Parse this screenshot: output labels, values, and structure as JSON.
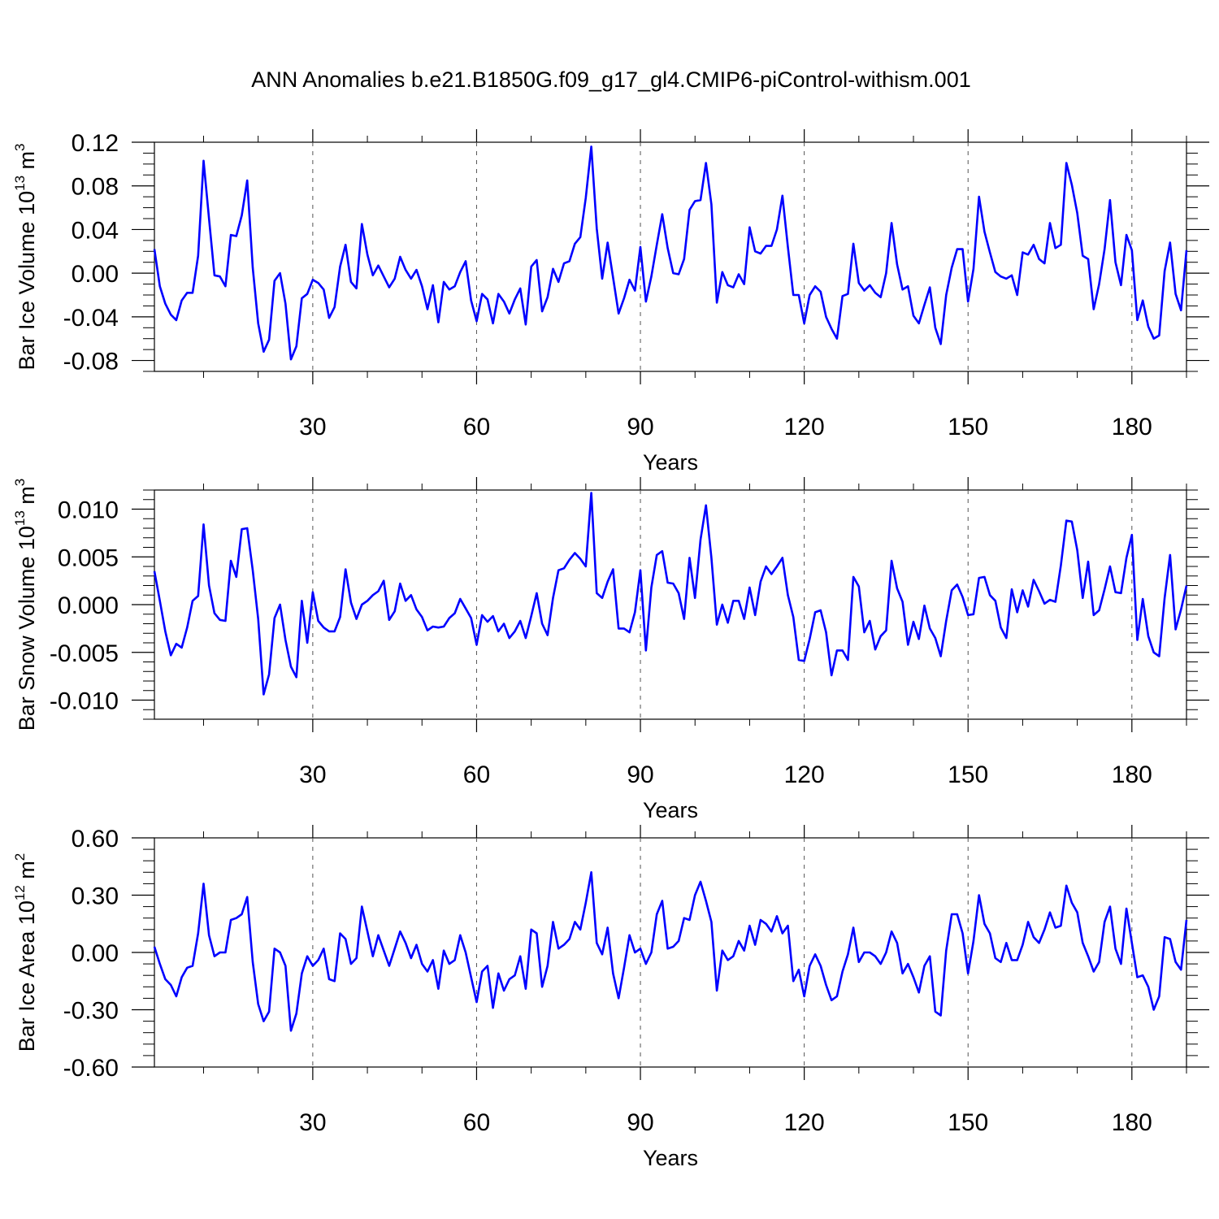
{
  "title": "ANN Anomalies b.e21.B1850G.f09_g17_gl4.CMIP6-piControl-withism.001",
  "colors": {
    "line": "#0000ff",
    "axis": "#000000",
    "grid": "#555555"
  },
  "chart_data": [
    {
      "type": "line",
      "title": "ANN Anomalies b.e21.B1850G.f09_g17_gl4.CMIP6-piControl-withism.001",
      "xlabel": "Years",
      "ylabel": {
        "text": "Bar Ice Volume 10",
        "exp": "13",
        "unit": " m",
        "unit_exp": "3"
      },
      "xlim": [
        1,
        190
      ],
      "ylim": [
        -0.09,
        0.12
      ],
      "xticks": [
        30,
        60,
        90,
        120,
        150,
        180
      ],
      "yticks": [
        -0.08,
        -0.04,
        0.0,
        0.04,
        0.08,
        0.12
      ],
      "ytick_labels": [
        "-0.08",
        "-0.04",
        "0.00",
        "0.04",
        "0.08",
        "0.12"
      ],
      "yminor": 0.01,
      "grid": "vertical dashed at major x ticks",
      "series": [
        {
          "name": "Bar Ice Volume",
          "values": [
            0.022,
            -0.012,
            -0.028,
            -0.038,
            -0.043,
            -0.025,
            -0.018,
            -0.018,
            0.016,
            0.103,
            0.05,
            -0.002,
            -0.003,
            -0.012,
            0.035,
            0.034,
            0.053,
            0.085,
            0.005,
            -0.046,
            -0.072,
            -0.061,
            -0.007,
            0.0,
            -0.028,
            -0.079,
            -0.067,
            -0.023,
            -0.019,
            -0.006,
            -0.009,
            -0.015,
            -0.041,
            -0.031,
            0.006,
            0.026,
            -0.008,
            -0.014,
            0.045,
            0.017,
            -0.002,
            0.007,
            -0.003,
            -0.013,
            -0.005,
            0.015,
            0.003,
            -0.005,
            0.003,
            -0.012,
            -0.033,
            -0.011,
            -0.045,
            -0.008,
            -0.015,
            -0.012,
            0.001,
            0.011,
            -0.025,
            -0.044,
            -0.019,
            -0.024,
            -0.046,
            -0.019,
            -0.026,
            -0.037,
            -0.024,
            -0.014,
            -0.047,
            0.006,
            0.012,
            -0.035,
            -0.022,
            0.004,
            -0.008,
            0.009,
            0.011,
            0.027,
            0.033,
            0.069,
            0.116,
            0.041,
            -0.005,
            0.028,
            -0.004,
            -0.037,
            -0.023,
            -0.006,
            -0.016,
            0.024,
            -0.026,
            -0.003,
            0.026,
            0.054,
            0.023,
            0.0,
            -0.001,
            0.013,
            0.058,
            0.066,
            0.067,
            0.101,
            0.063,
            -0.027,
            0.001,
            -0.011,
            -0.013,
            -0.001,
            -0.01,
            0.042,
            0.02,
            0.018,
            0.025,
            0.025,
            0.04,
            0.071,
            0.024,
            -0.02,
            -0.02,
            -0.046,
            -0.02,
            -0.012,
            -0.017,
            -0.04,
            -0.051,
            -0.06,
            -0.021,
            -0.019,
            0.027,
            -0.009,
            -0.016,
            -0.011,
            -0.018,
            -0.022,
            0.0,
            0.046,
            0.008,
            -0.015,
            -0.012,
            -0.039,
            -0.046,
            -0.029,
            -0.013,
            -0.05,
            -0.065,
            -0.02,
            0.005,
            0.022,
            0.022,
            -0.026,
            0.004,
            0.07,
            0.038,
            0.019,
            0.001,
            -0.003,
            -0.005,
            -0.002,
            -0.02,
            0.019,
            0.017,
            0.026,
            0.013,
            0.009,
            0.046,
            0.023,
            0.026,
            0.101,
            0.081,
            0.055,
            0.016,
            0.013,
            -0.033,
            -0.01,
            0.022,
            0.067,
            0.01,
            -0.011,
            0.035,
            0.021,
            -0.043,
            -0.025,
            -0.049,
            -0.06,
            -0.057,
            0.002,
            0.028,
            -0.019,
            -0.034,
            0.021
          ]
        }
      ]
    },
    {
      "type": "line",
      "xlabel": "Years",
      "ylabel": {
        "text": "Bar Snow Volume 10",
        "exp": "13",
        "unit": " m",
        "unit_exp": "3"
      },
      "xlim": [
        1,
        190
      ],
      "ylim": [
        -0.012,
        0.012
      ],
      "xticks": [
        30,
        60,
        90,
        120,
        150,
        180
      ],
      "yticks": [
        -0.01,
        -0.005,
        0.0,
        0.005,
        0.01
      ],
      "ytick_labels": [
        "-0.010",
        "-0.005",
        "0.000",
        "0.005",
        "0.010"
      ],
      "yminor": 0.001,
      "grid": "vertical dashed at major x ticks",
      "series": [
        {
          "name": "Bar Snow Volume",
          "values": [
            0.0035,
            0.0004,
            -0.0028,
            -0.0053,
            -0.0041,
            -0.0045,
            -0.0024,
            0.0004,
            0.0009,
            0.0084,
            0.002,
            -0.0009,
            -0.0016,
            -0.0017,
            0.0046,
            0.0029,
            0.0079,
            0.008,
            0.0036,
            -0.0015,
            -0.0094,
            -0.0073,
            -0.0014,
            0.0,
            -0.0037,
            -0.0065,
            -0.0076,
            0.0004,
            -0.004,
            0.0013,
            -0.0017,
            -0.0024,
            -0.0028,
            -0.0028,
            -0.0013,
            0.0037,
            0.0002,
            -0.0015,
            0.0,
            0.0004,
            0.001,
            0.0014,
            0.0025,
            -0.0016,
            -0.0007,
            0.0022,
            0.0004,
            0.001,
            -0.0005,
            -0.0013,
            -0.0027,
            -0.0023,
            -0.0024,
            -0.0023,
            -0.0014,
            -0.0009,
            0.0006,
            -0.0004,
            -0.0014,
            -0.0042,
            -0.0011,
            -0.0018,
            -0.0012,
            -0.0028,
            -0.002,
            -0.0035,
            -0.0028,
            -0.0017,
            -0.0035,
            -0.0012,
            0.0012,
            -0.002,
            -0.0032,
            0.0007,
            0.0036,
            0.0038,
            0.0047,
            0.0054,
            0.0048,
            0.004,
            0.0117,
            0.0012,
            0.0007,
            0.0024,
            0.0037,
            -0.0025,
            -0.0025,
            -0.0029,
            -0.0008,
            0.0036,
            -0.0048,
            0.0018,
            0.0052,
            0.0056,
            0.0023,
            0.0022,
            0.0012,
            -0.0015,
            0.0049,
            0.0007,
            0.0068,
            0.0104,
            0.0049,
            -0.0021,
            0.0,
            -0.0019,
            0.0004,
            0.0004,
            -0.0015,
            0.0018,
            -0.0011,
            0.0024,
            0.004,
            0.0032,
            0.004,
            0.0049,
            0.001,
            -0.0013,
            -0.0058,
            -0.0059,
            -0.0036,
            -0.0008,
            -0.0006,
            -0.0029,
            -0.0074,
            -0.0048,
            -0.0048,
            -0.0058,
            0.0029,
            0.0019,
            -0.0029,
            -0.0017,
            -0.0047,
            -0.0033,
            -0.0027,
            0.0046,
            0.0017,
            0.0003,
            -0.0042,
            -0.0018,
            -0.0036,
            -0.0001,
            -0.0025,
            -0.0035,
            -0.0054,
            -0.0017,
            0.0015,
            0.0021,
            0.0008,
            -0.0011,
            -0.001,
            0.0028,
            0.0029,
            0.001,
            0.0004,
            -0.0024,
            -0.0035,
            0.0016,
            -0.0008,
            0.0015,
            -0.0002,
            0.0026,
            0.0014,
            0.0001,
            0.0005,
            0.0003,
            0.0041,
            0.0088,
            0.0087,
            0.0057,
            0.0007,
            0.0045,
            -0.0011,
            -0.0006,
            0.0016,
            0.004,
            0.0013,
            0.0012,
            0.0049,
            0.0073,
            -0.0037,
            0.0006,
            -0.0033,
            -0.005,
            -0.0054,
            0.0007,
            0.0052,
            -0.0026,
            -0.0005,
            0.002
          ]
        }
      ]
    },
    {
      "type": "line",
      "xlabel": "Years",
      "ylabel": {
        "text": "Bar Ice Area 10",
        "exp": "12",
        "unit": " m",
        "unit_exp": "2"
      },
      "xlim": [
        1,
        190
      ],
      "ylim": [
        -0.6,
        0.6
      ],
      "xticks": [
        30,
        60,
        90,
        120,
        150,
        180
      ],
      "yticks": [
        -0.6,
        -0.3,
        0.0,
        0.3,
        0.6
      ],
      "ytick_labels": [
        "-0.60",
        "-0.30",
        "0.00",
        "0.30",
        "0.60"
      ],
      "yminor": 0.06,
      "grid": "vertical dashed at major x ticks",
      "series": [
        {
          "name": "Bar Ice Area",
          "values": [
            0.03,
            -0.06,
            -0.14,
            -0.17,
            -0.23,
            -0.13,
            -0.08,
            -0.07,
            0.1,
            0.36,
            0.09,
            -0.02,
            0.0,
            0.0,
            0.17,
            0.18,
            0.2,
            0.29,
            -0.05,
            -0.27,
            -0.36,
            -0.31,
            0.02,
            0.0,
            -0.07,
            -0.41,
            -0.32,
            -0.11,
            -0.02,
            -0.07,
            -0.04,
            0.02,
            -0.14,
            -0.15,
            0.1,
            0.07,
            -0.06,
            -0.03,
            0.24,
            0.11,
            -0.02,
            0.09,
            0.01,
            -0.07,
            0.02,
            0.11,
            0.05,
            -0.03,
            0.04,
            -0.06,
            -0.1,
            -0.04,
            -0.19,
            0.01,
            -0.06,
            -0.04,
            0.09,
            0.0,
            -0.13,
            -0.26,
            -0.1,
            -0.07,
            -0.29,
            -0.11,
            -0.2,
            -0.14,
            -0.12,
            -0.02,
            -0.19,
            0.12,
            0.1,
            -0.18,
            -0.07,
            0.16,
            0.02,
            0.04,
            0.07,
            0.16,
            0.12,
            0.26,
            0.42,
            0.05,
            -0.01,
            0.13,
            -0.11,
            -0.24,
            -0.08,
            0.09,
            0.0,
            0.02,
            -0.06,
            0.0,
            0.2,
            0.27,
            0.02,
            0.03,
            0.06,
            0.18,
            0.17,
            0.3,
            0.37,
            0.27,
            0.16,
            -0.2,
            0.01,
            -0.04,
            -0.02,
            0.06,
            0.01,
            0.14,
            0.04,
            0.17,
            0.15,
            0.11,
            0.19,
            0.1,
            0.14,
            -0.15,
            -0.09,
            -0.23,
            -0.07,
            -0.01,
            -0.07,
            -0.17,
            -0.25,
            -0.23,
            -0.1,
            -0.01,
            0.13,
            -0.05,
            0.0,
            0.0,
            -0.02,
            -0.06,
            0.0,
            0.11,
            0.05,
            -0.11,
            -0.06,
            -0.13,
            -0.21,
            -0.07,
            -0.02,
            -0.31,
            -0.33,
            0.01,
            0.2,
            0.2,
            0.1,
            -0.11,
            0.06,
            0.3,
            0.15,
            0.1,
            -0.03,
            -0.05,
            0.05,
            -0.04,
            -0.04,
            0.04,
            0.16,
            0.08,
            0.05,
            0.12,
            0.21,
            0.13,
            0.14,
            0.35,
            0.26,
            0.21,
            0.05,
            -0.02,
            -0.1,
            -0.05,
            0.16,
            0.24,
            0.02,
            -0.06,
            0.23,
            0.05,
            -0.13,
            -0.12,
            -0.18,
            -0.3,
            -0.23,
            0.08,
            0.07,
            -0.05,
            -0.09,
            0.17
          ]
        }
      ]
    }
  ]
}
